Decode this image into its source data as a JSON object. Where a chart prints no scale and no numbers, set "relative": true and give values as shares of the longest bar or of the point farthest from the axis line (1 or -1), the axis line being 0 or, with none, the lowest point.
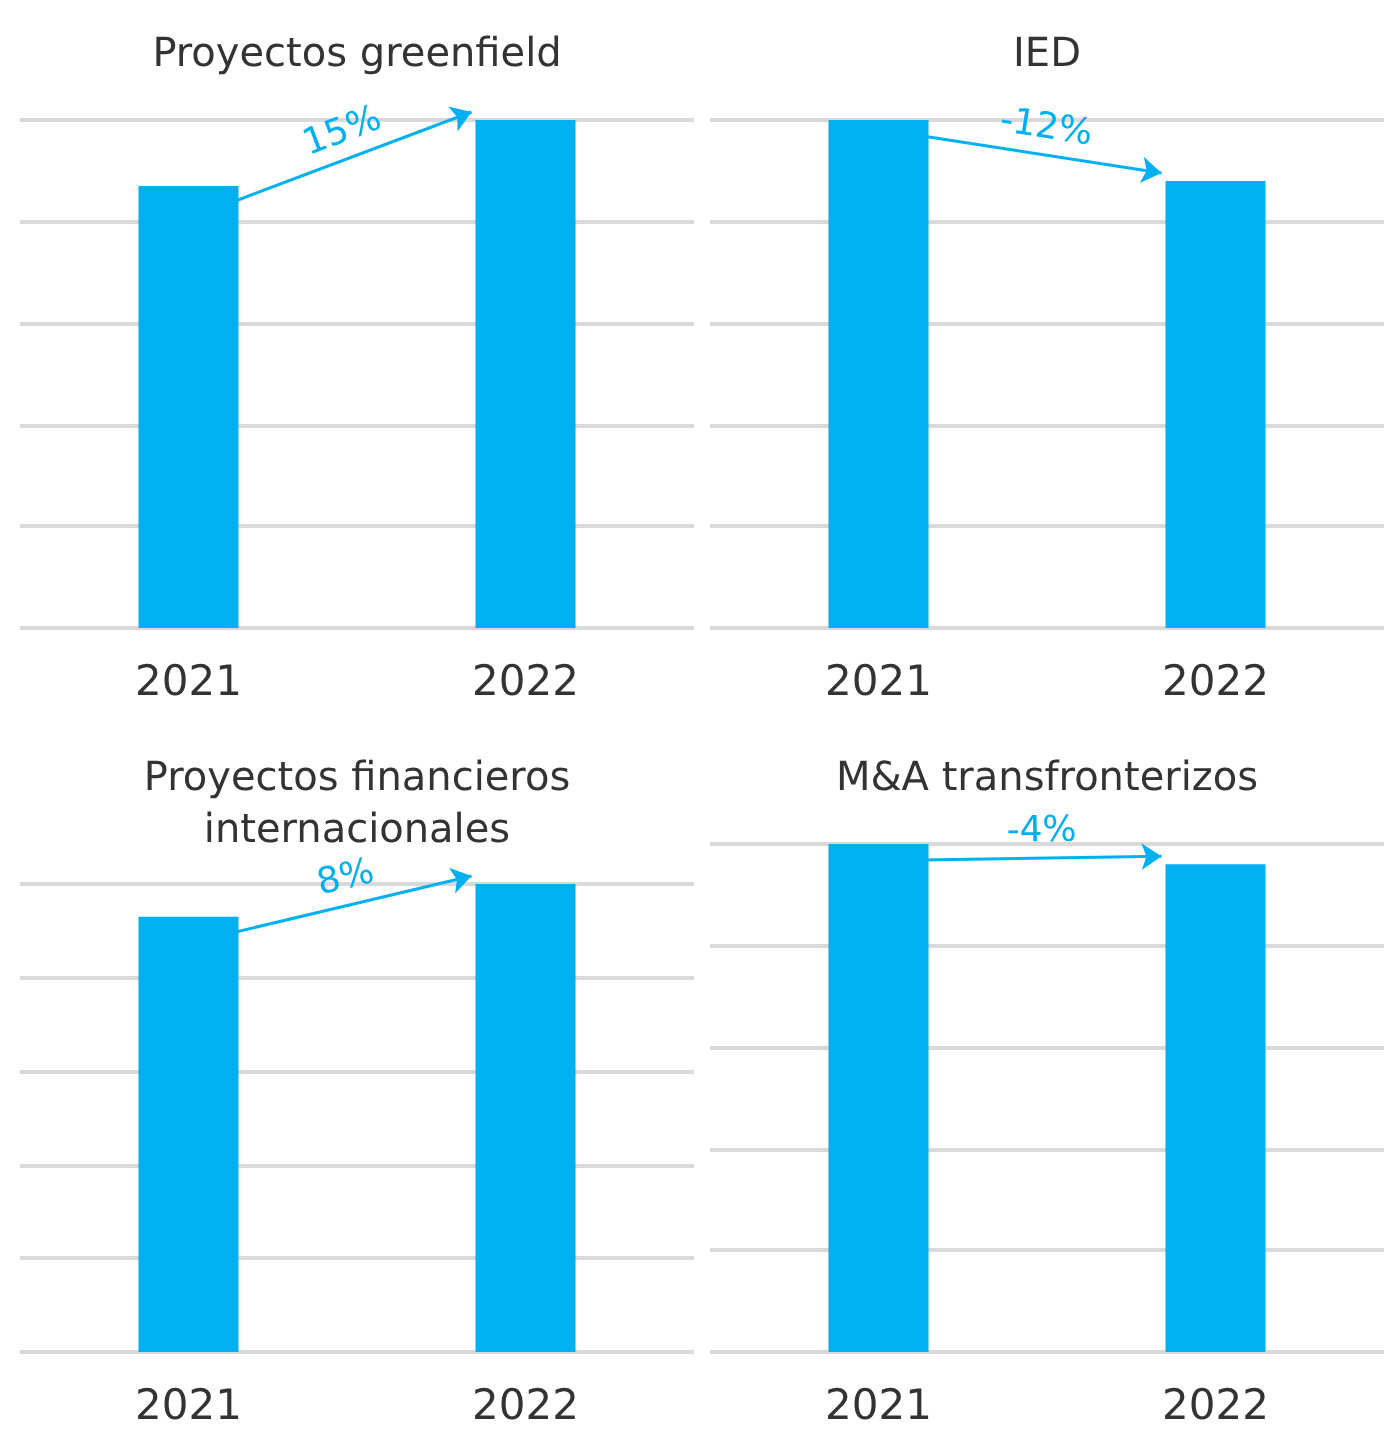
{
  "chart_data": [
    {
      "type": "bar",
      "title": "Proyectos greenfield",
      "categories": [
        "2021",
        "2022"
      ],
      "values": [
        0.87,
        1
      ],
      "color": "#00b0f0",
      "relative": true,
      "grid": "y",
      "annotations": [
        "15%"
      ]
    },
    {
      "type": "bar",
      "title": "IED",
      "categories": [
        "2021",
        "2022"
      ],
      "values": [
        1,
        0.88
      ],
      "color": "#00b0f0",
      "relative": true,
      "grid": "y",
      "annotations": [
        "-12%"
      ]
    },
    {
      "type": "bar",
      "title": "Proyectos financieros\ninternacionales",
      "categories": [
        "2021",
        "2022"
      ],
      "values": [
        0.93,
        1
      ],
      "color": "#00b0f0",
      "relative": true,
      "grid": "y",
      "annotations": [
        "8%"
      ]
    },
    {
      "type": "bar",
      "title": "M&A transfronterizos",
      "categories": [
        "2021",
        "2022"
      ],
      "values": [
        1,
        0.96
      ],
      "color": "#00b0f0",
      "relative": true,
      "grid": "y",
      "annotations": [
        "-4%"
      ]
    }
  ]
}
